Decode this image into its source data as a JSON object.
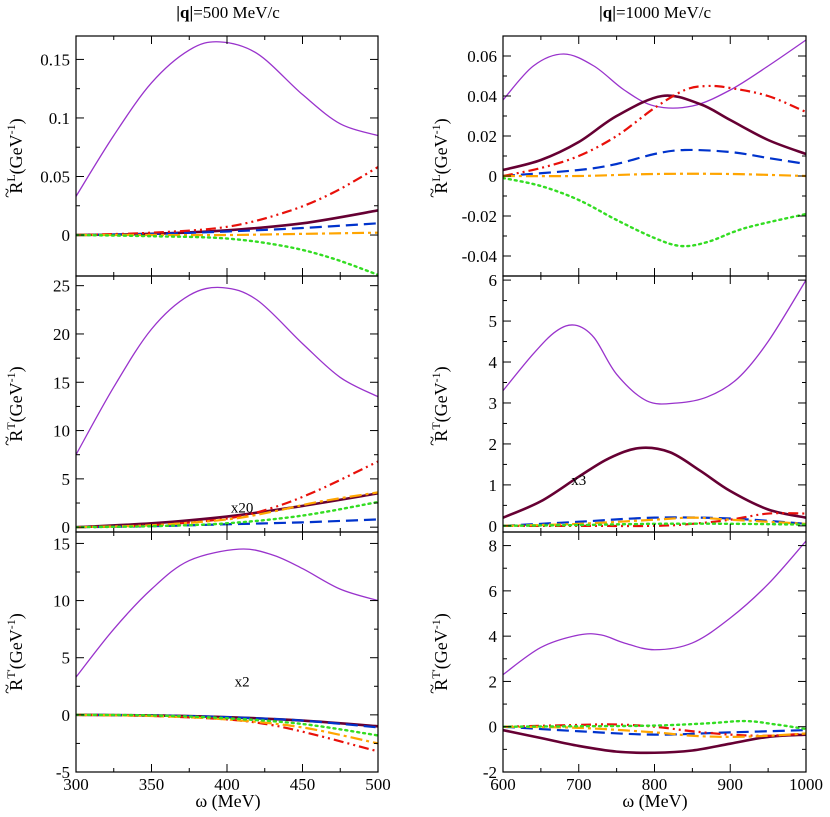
{
  "chart_data": {
    "type": "line",
    "columns": [
      {
        "title": "|q|=500 MeV/c",
        "xlim": [
          300,
          500
        ],
        "xticks": [
          300,
          350,
          400,
          450,
          500
        ]
      },
      {
        "title": "|q|=1000 MeV/c",
        "xlim": [
          600,
          1000
        ],
        "xticks": [
          600,
          700,
          800,
          900,
          1000
        ]
      }
    ],
    "xlabel": "ω (MeV)",
    "rows": [
      {
        "ylabel_base": "R",
        "ylabel_sup": "L",
        "ylabel_unit": "(GeV",
        "ylabel_unit_sup": "-1",
        "ylabel_close": ")"
      },
      {
        "ylabel_base": "R",
        "ylabel_sup": "T",
        "ylabel_unit": "(GeV",
        "ylabel_unit_sup": "-1",
        "ylabel_close": ")"
      },
      {
        "ylabel_base": "R",
        "ylabel_sup": "T'",
        "ylabel_unit": "(GeV",
        "ylabel_unit_sup": "-1",
        "ylabel_close": ")"
      }
    ],
    "series_styles": [
      {
        "name": "thin-violet",
        "color": "#9933cc",
        "dash": "",
        "width": 1.3
      },
      {
        "name": "thick-maroon",
        "color": "#660033",
        "dash": "",
        "width": 2.6
      },
      {
        "name": "blue-dashed",
        "color": "#0033cc",
        "dash": "12,6",
        "width": 2.2
      },
      {
        "name": "red-dash-dot-dot",
        "color": "#e8100a",
        "dash": "10,4,2,4,2,4",
        "width": 2.2
      },
      {
        "name": "orange-dash-dot",
        "color": "#ffa500",
        "dash": "12,4,3,4",
        "width": 2.2
      },
      {
        "name": "green-dotted",
        "color": "#33dd22",
        "dash": "2,4",
        "width": 2.4
      }
    ],
    "panels": [
      {
        "row": 0,
        "col": 0,
        "ylim": [
          -0.035,
          0.17
        ],
        "yticks": [
          0,
          0.05,
          0.1,
          0.15
        ],
        "ytick_labels": [
          "0",
          "0.05",
          "0.1",
          "0.15"
        ],
        "series": [
          {
            "x": [
              300,
              325,
              350,
              375,
              395,
              420,
              450,
              475,
              500
            ],
            "y": [
              0.033,
              0.085,
              0.13,
              0.158,
              0.165,
              0.155,
              0.12,
              0.095,
              0.085
            ]
          },
          {
            "x": [
              300,
              350,
              400,
              450,
              500
            ],
            "y": [
              0,
              0.001,
              0.004,
              0.01,
              0.021
            ]
          },
          {
            "x": [
              300,
              350,
              400,
              450,
              500
            ],
            "y": [
              0,
              0.001,
              0.003,
              0.006,
              0.01
            ]
          },
          {
            "x": [
              300,
              350,
              400,
              440,
              470,
              500
            ],
            "y": [
              0,
              0.002,
              0.007,
              0.02,
              0.036,
              0.058
            ]
          },
          {
            "x": [
              300,
              350,
              400,
              450,
              500
            ],
            "y": [
              0,
              0,
              0,
              0.001,
              0.002
            ]
          },
          {
            "x": [
              300,
              350,
              400,
              440,
              470,
              500
            ],
            "y": [
              0,
              -0.001,
              -0.003,
              -0.01,
              -0.02,
              -0.034
            ]
          }
        ]
      },
      {
        "row": 0,
        "col": 1,
        "ylim": [
          -0.05,
          0.07
        ],
        "yticks": [
          -0.04,
          -0.02,
          0,
          0.02,
          0.04,
          0.06
        ],
        "ytick_labels": [
          "-0.04",
          "-0.02",
          "0",
          "0.02",
          "0.04",
          "0.06"
        ],
        "series": [
          {
            "x": [
              600,
              640,
              680,
              720,
              760,
              800,
              850,
              900,
              950,
              1000
            ],
            "y": [
              0.038,
              0.055,
              0.061,
              0.055,
              0.043,
              0.035,
              0.035,
              0.043,
              0.055,
              0.068
            ]
          },
          {
            "x": [
              600,
              650,
              700,
              750,
              810,
              860,
              900,
              950,
              1000
            ],
            "y": [
              0.003,
              0.008,
              0.017,
              0.03,
              0.04,
              0.036,
              0.028,
              0.018,
              0.011
            ]
          },
          {
            "x": [
              600,
              700,
              750,
              800,
              840,
              900,
              950,
              1000
            ],
            "y": [
              0,
              0.003,
              0.006,
              0.011,
              0.013,
              0.012,
              0.009,
              0.006
            ]
          },
          {
            "x": [
              600,
              650,
              700,
              750,
              800,
              840,
              870,
              900,
              950,
              1000
            ],
            "y": [
              0,
              0.004,
              0.01,
              0.02,
              0.034,
              0.043,
              0.045,
              0.044,
              0.04,
              0.032
            ]
          },
          {
            "x": [
              600,
              700,
              800,
              900,
              1000
            ],
            "y": [
              0,
              0,
              0.001,
              0.001,
              0
            ]
          },
          {
            "x": [
              600,
              650,
              700,
              750,
              800,
              835,
              870,
              920,
              1000
            ],
            "y": [
              -0.001,
              -0.005,
              -0.012,
              -0.022,
              -0.031,
              -0.035,
              -0.033,
              -0.026,
              -0.019
            ]
          }
        ]
      },
      {
        "row": 1,
        "col": 0,
        "ylim": [
          -0.5,
          26
        ],
        "yticks": [
          0,
          5,
          10,
          15,
          20,
          25
        ],
        "ytick_labels": [
          "0",
          "5",
          "10",
          "15",
          "20",
          "25"
        ],
        "series": [
          {
            "x": [
              300,
              325,
              350,
              375,
              397,
              420,
              450,
              475,
              500
            ],
            "y": [
              7.5,
              14.5,
              20.5,
              24,
              24.8,
              23.5,
              19,
              15.5,
              13.5
            ]
          },
          {
            "x": [
              300,
              350,
              400,
              450,
              500
            ],
            "y": [
              0,
              0.4,
              1.1,
              2.2,
              3.5
            ]
          },
          {
            "x": [
              300,
              350,
              400,
              450,
              500
            ],
            "y": [
              0,
              0.1,
              0.3,
              0.5,
              0.8
            ]
          },
          {
            "x": [
              300,
              350,
              400,
              430,
              460,
              500
            ],
            "y": [
              0,
              0.2,
              0.9,
              2,
              3.8,
              6.8
            ]
          },
          {
            "x": [
              300,
              350,
              400,
              430,
              460,
              500
            ],
            "y": [
              0,
              0.2,
              0.8,
              1.6,
              2.6,
              3.6
            ]
          },
          {
            "x": [
              300,
              350,
              400,
              450,
              500
            ],
            "y": [
              0,
              0.1,
              0.4,
              1.2,
              2.6
            ]
          }
        ],
        "annotation": {
          "text": "x20",
          "x": 410,
          "y": 1.5
        }
      },
      {
        "row": 1,
        "col": 1,
        "ylim": [
          -0.15,
          6.1
        ],
        "yticks": [
          0,
          1,
          2,
          3,
          4,
          5,
          6
        ],
        "ytick_labels": [
          "0",
          "1",
          "2",
          "3",
          "4",
          "5",
          "6"
        ],
        "series": [
          {
            "x": [
              600,
              640,
              670,
              695,
              720,
              750,
              790,
              830,
              870,
              910,
              950,
              1000
            ],
            "y": [
              3.3,
              4.2,
              4.75,
              4.9,
              4.6,
              3.7,
              3.05,
              3.0,
              3.15,
              3.6,
              4.5,
              6
            ]
          },
          {
            "x": [
              600,
              650,
              700,
              740,
              780,
              820,
              860,
              900,
              950,
              1000
            ],
            "y": [
              0.2,
              0.6,
              1.2,
              1.65,
              1.9,
              1.8,
              1.35,
              0.85,
              0.4,
              0.2
            ]
          },
          {
            "x": [
              600,
              700,
              800,
              900,
              1000
            ],
            "y": [
              0,
              0.1,
              0.2,
              0.18,
              0.05
            ]
          },
          {
            "x": [
              600,
              700,
              800,
              850,
              900,
              950,
              1000
            ],
            "y": [
              0,
              0,
              0,
              0.05,
              0.15,
              0.3,
              0.3
            ]
          },
          {
            "x": [
              600,
              700,
              800,
              850,
              900,
              950,
              1000
            ],
            "y": [
              0,
              0.05,
              0.15,
              0.2,
              0.15,
              0.1,
              0.05
            ]
          },
          {
            "x": [
              600,
              700,
              800,
              900,
              1000
            ],
            "y": [
              0,
              0.02,
              0.05,
              0.05,
              0.03
            ]
          }
        ],
        "annotation": {
          "text": "x3",
          "x": 700,
          "y": 1.0
        }
      },
      {
        "row": 2,
        "col": 0,
        "ylim": [
          -5,
          16
        ],
        "yticks": [
          -5,
          0,
          5,
          10,
          15
        ],
        "ytick_labels": [
          "-5",
          "0",
          "5",
          "10",
          "15"
        ],
        "series": [
          {
            "x": [
              300,
              325,
              350,
              375,
              408,
              430,
              450,
              475,
              500
            ],
            "y": [
              3.3,
              7.5,
              11,
              13.5,
              14.5,
              14,
              12.8,
              11,
              10
            ]
          },
          {
            "x": [
              300,
              350,
              400,
              450,
              500
            ],
            "y": [
              0,
              -0.05,
              -0.2,
              -0.5,
              -1
            ]
          },
          {
            "x": [
              300,
              350,
              400,
              450,
              500
            ],
            "y": [
              0,
              -0.05,
              -0.2,
              -0.5,
              -1.1
            ]
          },
          {
            "x": [
              300,
              350,
              400,
              430,
              460,
              500
            ],
            "y": [
              0,
              -0.1,
              -0.4,
              -0.9,
              -1.8,
              -3.2
            ]
          },
          {
            "x": [
              300,
              350,
              400,
              450,
              500
            ],
            "y": [
              0,
              -0.1,
              -0.4,
              -1.1,
              -2.5
            ]
          },
          {
            "x": [
              300,
              350,
              400,
              450,
              500
            ],
            "y": [
              0,
              -0.05,
              -0.3,
              -0.8,
              -1.8
            ]
          }
        ],
        "annotation": {
          "text": "x2",
          "x": 410,
          "y": 2.5
        }
      },
      {
        "row": 2,
        "col": 1,
        "ylim": [
          -2,
          8.6
        ],
        "yticks": [
          -2,
          0,
          2,
          4,
          6,
          8
        ],
        "ytick_labels": [
          "-2",
          "0",
          "2",
          "4",
          "6",
          "8"
        ],
        "series": [
          {
            "x": [
              600,
              650,
              700,
              730,
              760,
              800,
              850,
              900,
              950,
              1000
            ],
            "y": [
              2.3,
              3.5,
              4.05,
              4.05,
              3.7,
              3.4,
              3.7,
              4.8,
              6.3,
              8.2
            ]
          },
          {
            "x": [
              600,
              650,
              700,
              750,
              800,
              850,
              900,
              950,
              1000
            ],
            "y": [
              -0.15,
              -0.5,
              -0.85,
              -1.1,
              -1.15,
              -1.05,
              -0.75,
              -0.45,
              -0.35
            ]
          },
          {
            "x": [
              600,
              700,
              800,
              900,
              1000
            ],
            "y": [
              0,
              -0.2,
              -0.35,
              -0.25,
              -0.15
            ]
          },
          {
            "x": [
              600,
              700,
              750,
              800,
              850,
              900,
              950,
              1000
            ],
            "y": [
              0,
              0.08,
              0.1,
              0,
              -0.2,
              -0.35,
              -0.4,
              -0.3
            ]
          },
          {
            "x": [
              600,
              700,
              800,
              850,
              900,
              950,
              1000
            ],
            "y": [
              0,
              -0.05,
              -0.25,
              -0.4,
              -0.45,
              -0.4,
              -0.3
            ]
          },
          {
            "x": [
              600,
              700,
              800,
              870,
              920,
              960,
              1000
            ],
            "y": [
              0,
              0.02,
              0.05,
              0.15,
              0.25,
              0.1,
              -0.1
            ]
          }
        ]
      }
    ]
  }
}
